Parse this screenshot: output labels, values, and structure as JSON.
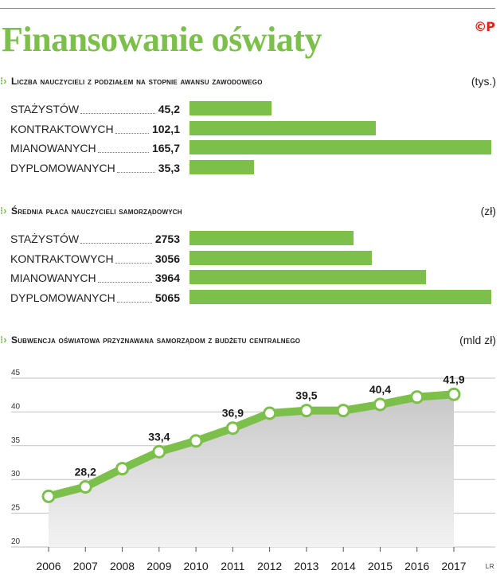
{
  "title": "Finansowanie oświaty",
  "logo_text": "©P",
  "colors": {
    "accent": "#7cc04b",
    "logo": "#e2231a",
    "area": "#d9d9d9"
  },
  "section1": {
    "icon": "dots-arrow-icon",
    "title": "Liczba nauczycieli z podziałem na stopnie awansu zawodowego",
    "unit": "(tys.)"
  },
  "section2": {
    "icon": "dots-arrow-icon",
    "title": "Średnia płaca nauczycieli samorządowych",
    "unit": "(zł)"
  },
  "section3": {
    "icon": "dots-arrow-icon",
    "title": "Subwencja oświatowa przyznawana samorządom z budżetu centralnego",
    "unit": "(mld zł)"
  },
  "credit": "LR",
  "chart_data": [
    {
      "type": "bar",
      "orientation": "horizontal",
      "title": "Liczba nauczycieli z podziałem na stopnie awansu zawodowego",
      "unit": "(tys.)",
      "categories": [
        "STAŻYSTÓW",
        "KONTRAKTOWYCH",
        "MIANOWANYCH",
        "DYPLOMOWANYCH"
      ],
      "values": [
        45.2,
        102.1,
        165.7,
        35.3
      ],
      "value_labels": [
        "45,2",
        "102,1",
        "165,7",
        "35,3"
      ]
    },
    {
      "type": "bar",
      "orientation": "horizontal",
      "title": "Średnia płaca nauczycieli samorządowych",
      "unit": "(zł)",
      "categories": [
        "STAŻYSTÓW",
        "KONTRAKTOWYCH",
        "MIANOWANYCH",
        "DYPLOMOWANYCH"
      ],
      "values": [
        2753,
        3056,
        3964,
        5065
      ],
      "value_labels": [
        "2753",
        "3056",
        "3964",
        "5065"
      ]
    },
    {
      "type": "area",
      "title": "Subwencja oświatowa przyznawana samorządom z budżetu centralnego",
      "unit": "(mld zł)",
      "x": [
        2006,
        2007,
        2008,
        2009,
        2010,
        2011,
        2012,
        2013,
        2014,
        2015,
        2016,
        2017
      ],
      "values": [
        26.8,
        28.2,
        30.9,
        33.4,
        35.0,
        36.9,
        39.1,
        39.5,
        39.5,
        40.4,
        41.5,
        41.9
      ],
      "point_labels": [
        "",
        "28,2",
        "",
        "33,4",
        "",
        "36,9",
        "",
        "39,5",
        "",
        "40,4",
        "",
        "41,9"
      ],
      "ylim": [
        20,
        45
      ],
      "yticks": [
        20,
        25,
        30,
        35,
        40,
        45
      ],
      "grid": "horizontal"
    }
  ]
}
